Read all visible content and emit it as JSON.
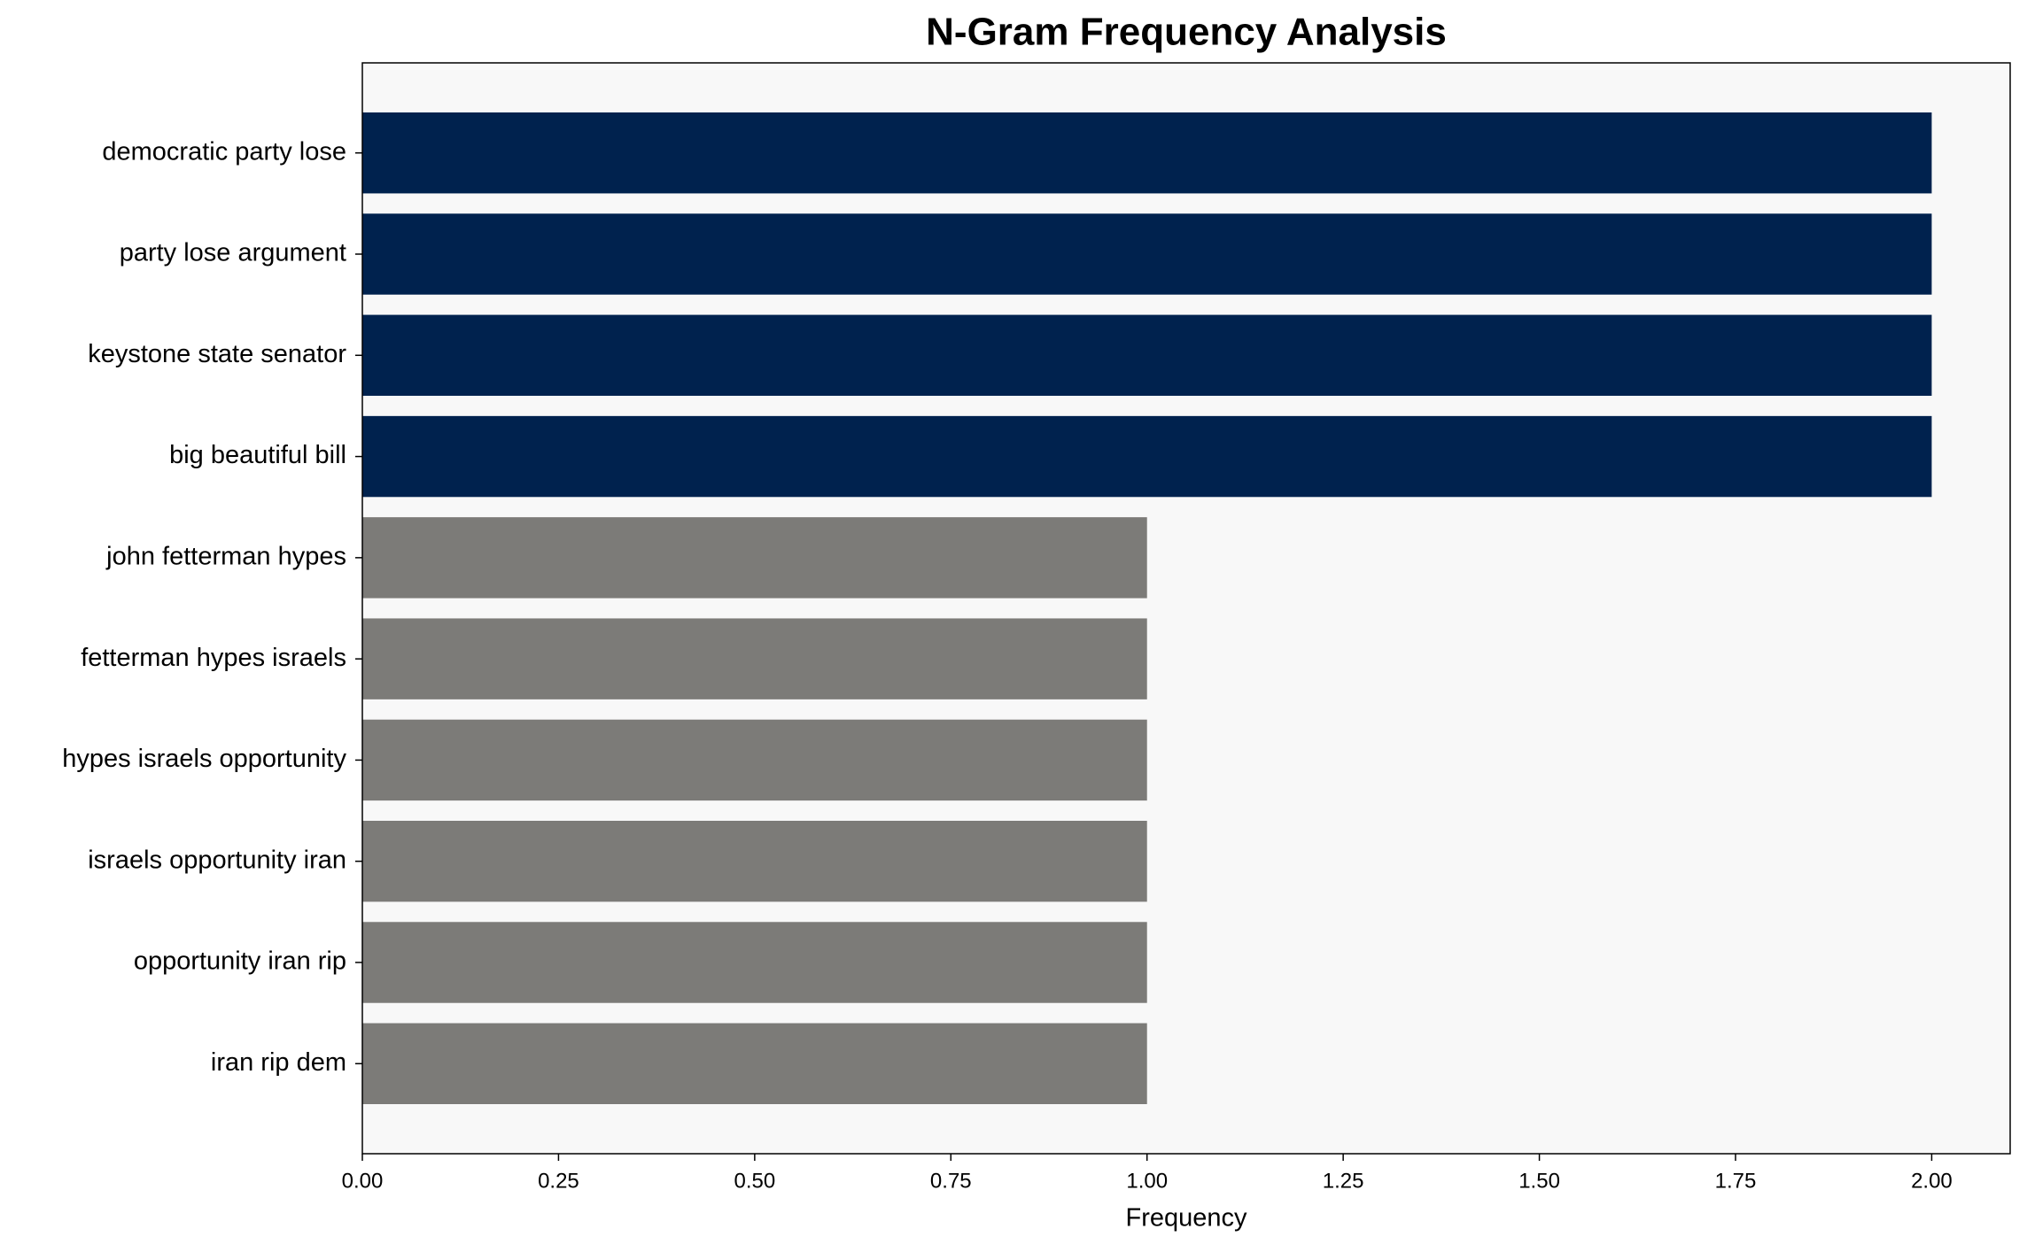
{
  "chart_data": {
    "type": "barh",
    "title": "N-Gram Frequency Analysis",
    "xlabel": "Frequency",
    "categories": [
      "democratic party lose",
      "party lose argument",
      "keystone state senator",
      "big beautiful bill",
      "john fetterman hypes",
      "fetterman hypes israels",
      "hypes israels opportunity",
      "israels opportunity iran",
      "opportunity iran rip",
      "iran rip dem"
    ],
    "values": [
      2,
      2,
      2,
      2,
      1,
      1,
      1,
      1,
      1,
      1
    ],
    "colors": [
      "#00224e",
      "#00224e",
      "#00224e",
      "#00224e",
      "#7c7b78",
      "#7c7b78",
      "#7c7b78",
      "#7c7b78",
      "#7c7b78",
      "#7c7b78"
    ],
    "xlim": [
      0,
      2.1
    ],
    "xticks": [
      {
        "value": 0,
        "label": "0.00"
      },
      {
        "value": 0.25,
        "label": "0.25"
      },
      {
        "value": 0.5,
        "label": "0.50"
      },
      {
        "value": 0.75,
        "label": "0.75"
      },
      {
        "value": 1,
        "label": "1.00"
      },
      {
        "value": 1.25,
        "label": "1.25"
      },
      {
        "value": 1.5,
        "label": "1.50"
      },
      {
        "value": 1.75,
        "label": "1.75"
      },
      {
        "value": 2,
        "label": "2.00"
      }
    ],
    "grid": false,
    "background": "#f8f8f8"
  }
}
